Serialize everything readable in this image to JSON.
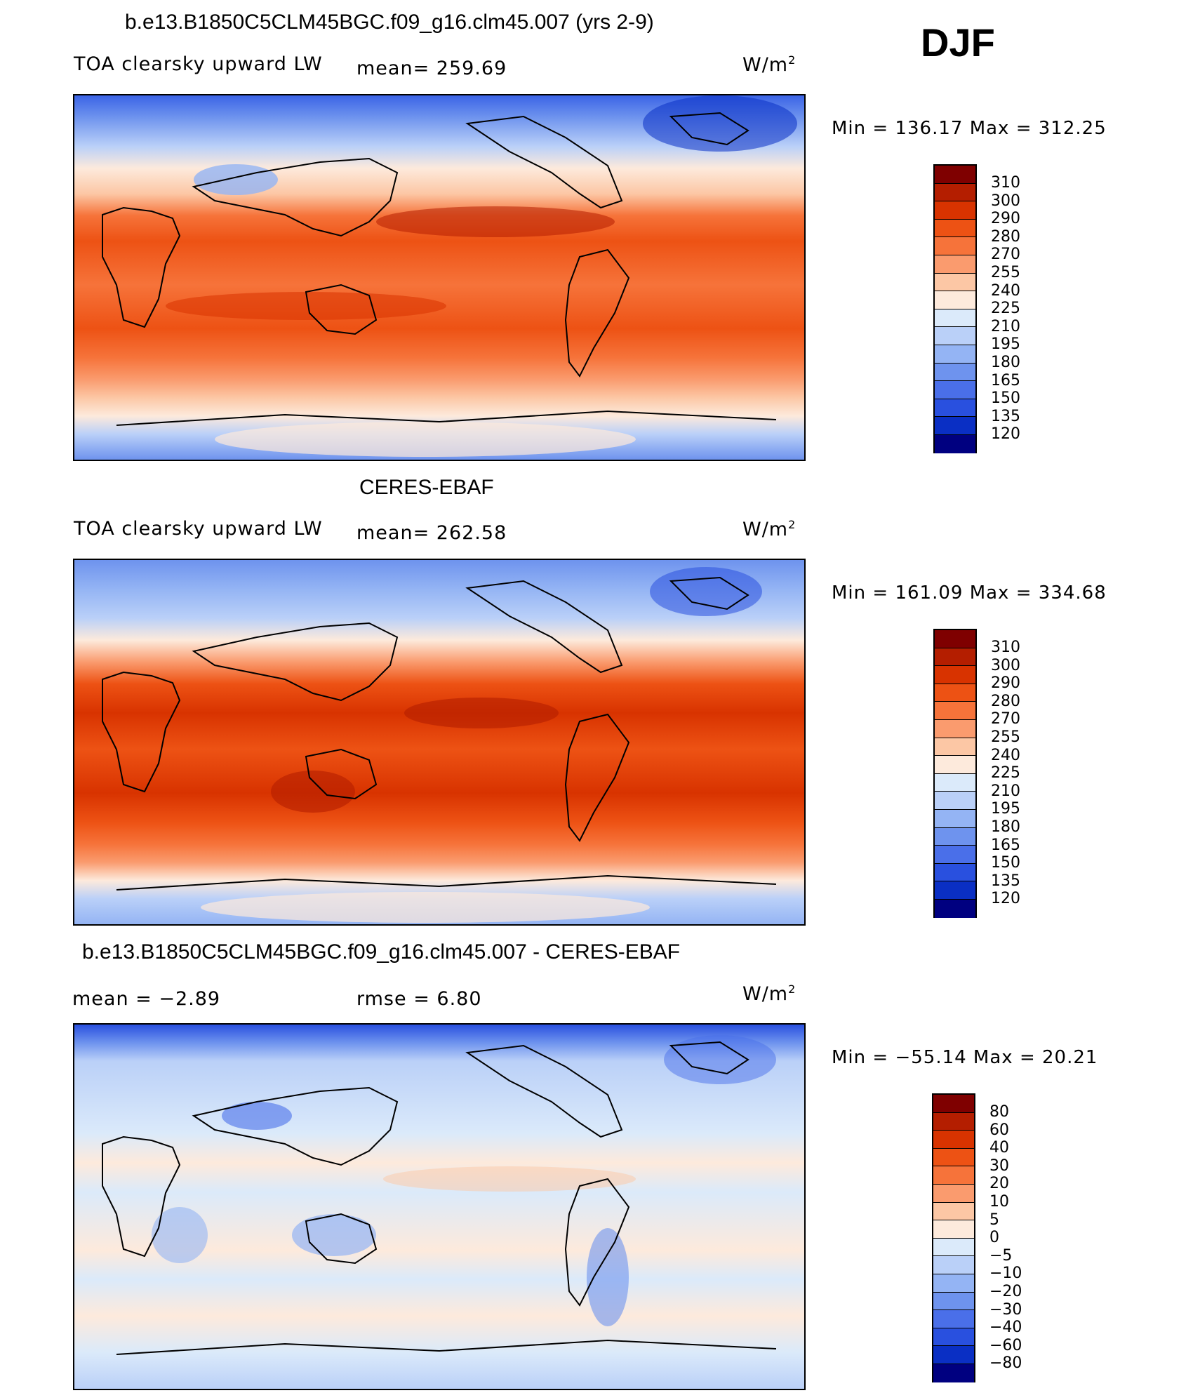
{
  "season": "DJF",
  "panels": [
    {
      "title": "b.e13.B1850C5CLM45BGC.f09_g16.clm45.007 (yrs 2-9)",
      "left_label": "TOA clearsky upward LW",
      "mid_label": "mean= 259.69",
      "units_base": "W/m",
      "units_exp": "2",
      "minmax": "Min = 136.17 Max = 312.25",
      "colorbar": {
        "labels": [
          "310",
          "300",
          "290",
          "280",
          "270",
          "255",
          "240",
          "225",
          "210",
          "195",
          "180",
          "165",
          "150",
          "135",
          "120"
        ],
        "colors": [
          "#7f0000",
          "#b41e00",
          "#d83300",
          "#ed5214",
          "#f6733a",
          "#fa9b6e",
          "#fcc7a5",
          "#fdeadc",
          "#dbeafa",
          "#bad0f8",
          "#94b4f4",
          "#6e93ee",
          "#4a6fe9",
          "#2950df",
          "#0a2fc4",
          "#000080"
        ]
      }
    },
    {
      "title": "CERES-EBAF",
      "left_label": "TOA clearsky upward LW",
      "mid_label": "mean= 262.58",
      "units_base": "W/m",
      "units_exp": "2",
      "minmax": "Min = 161.09 Max = 334.68",
      "colorbar": {
        "labels": [
          "310",
          "300",
          "290",
          "280",
          "270",
          "255",
          "240",
          "225",
          "210",
          "195",
          "180",
          "165",
          "150",
          "135",
          "120"
        ],
        "colors": [
          "#7f0000",
          "#b41e00",
          "#d83300",
          "#ed5214",
          "#f6733a",
          "#fa9b6e",
          "#fcc7a5",
          "#fdeadc",
          "#dbeafa",
          "#bad0f8",
          "#94b4f4",
          "#6e93ee",
          "#4a6fe9",
          "#2950df",
          "#0a2fc4",
          "#000080"
        ]
      }
    },
    {
      "title": "b.e13.B1850C5CLM45BGC.f09_g16.clm45.007 - CERES-EBAF",
      "left_label": "mean =   −2.89",
      "mid_label": "rmse =    6.80",
      "units_base": "W/m",
      "units_exp": "2",
      "minmax": "Min = −55.14 Max =  20.21",
      "colorbar": {
        "labels": [
          "80",
          "60",
          "40",
          "30",
          "20",
          "10",
          "5",
          "0",
          "−5",
          "−10",
          "−20",
          "−30",
          "−40",
          "−60",
          "−80"
        ],
        "colors": [
          "#7f0000",
          "#b41e00",
          "#d83300",
          "#ed5214",
          "#f6733a",
          "#fa9b6e",
          "#fcc7a5",
          "#fdeadc",
          "#dbeafa",
          "#bad0f8",
          "#94b4f4",
          "#6e93ee",
          "#4a6fe9",
          "#2950df",
          "#0a2fc4",
          "#000080"
        ]
      }
    }
  ]
}
